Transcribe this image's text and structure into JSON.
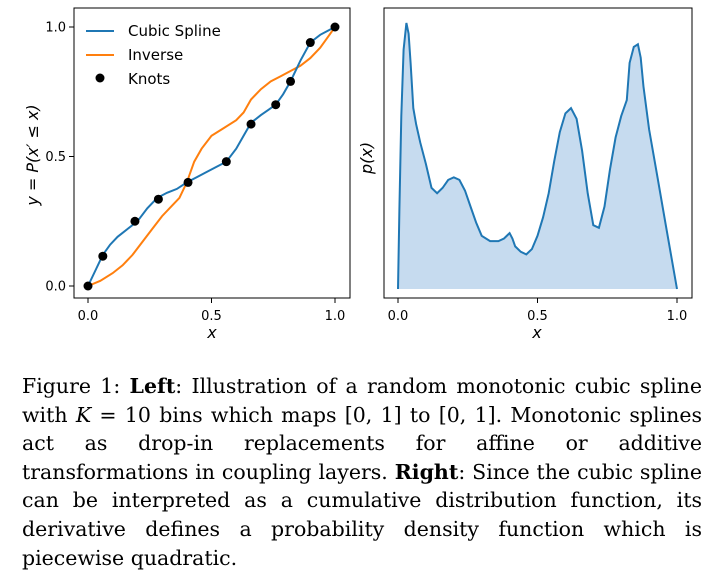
{
  "chart_data": [
    {
      "type": "line",
      "xlabel": "x",
      "ylabel": "y = P(x′ ≤ x)",
      "xlim": [
        0,
        1
      ],
      "ylim": [
        0,
        1
      ],
      "xticks": [
        "0.0",
        "0.5",
        "1.0"
      ],
      "yticks": [
        "0.0",
        "0.5",
        "1.0"
      ],
      "legend_position": "top-left",
      "colors": {
        "spline": "#1f77b4",
        "inverse": "#ff7f0e",
        "knots": "#000000"
      },
      "series": [
        {
          "name": "Cubic Spline",
          "x": [
            0,
            0.03,
            0.06,
            0.09,
            0.12,
            0.16,
            0.2,
            0.24,
            0.28,
            0.32,
            0.36,
            0.4,
            0.44,
            0.48,
            0.52,
            0.56,
            0.6,
            0.63,
            0.66,
            0.7,
            0.73,
            0.76,
            0.79,
            0.82,
            0.86,
            0.9,
            0.94,
            0.97,
            1.0
          ],
          "y": [
            0,
            0.06,
            0.12,
            0.16,
            0.19,
            0.22,
            0.25,
            0.3,
            0.34,
            0.36,
            0.375,
            0.4,
            0.42,
            0.44,
            0.46,
            0.48,
            0.53,
            0.58,
            0.63,
            0.66,
            0.68,
            0.7,
            0.74,
            0.79,
            0.87,
            0.94,
            0.97,
            0.985,
            1.0
          ]
        },
        {
          "name": "Inverse",
          "x": [
            0,
            0.05,
            0.1,
            0.14,
            0.18,
            0.22,
            0.26,
            0.3,
            0.34,
            0.37,
            0.4,
            0.43,
            0.46,
            0.5,
            0.55,
            0.6,
            0.63,
            0.66,
            0.7,
            0.74,
            0.78,
            0.82,
            0.86,
            0.9,
            0.94,
            0.97,
            1.0
          ],
          "y": [
            0,
            0.02,
            0.05,
            0.08,
            0.12,
            0.17,
            0.22,
            0.27,
            0.31,
            0.34,
            0.4,
            0.48,
            0.53,
            0.58,
            0.61,
            0.64,
            0.67,
            0.72,
            0.76,
            0.79,
            0.81,
            0.83,
            0.85,
            0.88,
            0.92,
            0.96,
            1.0
          ]
        },
        {
          "name": "Knots",
          "x": [
            0.0,
            0.06,
            0.19,
            0.285,
            0.405,
            0.56,
            0.66,
            0.76,
            0.82,
            0.9,
            1.0
          ],
          "y": [
            0.0,
            0.115,
            0.25,
            0.335,
            0.4,
            0.48,
            0.625,
            0.7,
            0.79,
            0.94,
            1.0
          ]
        }
      ]
    },
    {
      "type": "area",
      "xlabel": "x",
      "ylabel": "p(x)",
      "xlim": [
        0,
        1
      ],
      "xticks": [
        "0.0",
        "0.5",
        "1.0"
      ],
      "yticks": [],
      "colors": {
        "line": "#1f77b4",
        "fill": "#c6dbef"
      },
      "series": [
        {
          "x": [
            0,
            0.005,
            0.012,
            0.02,
            0.03,
            0.038,
            0.045,
            0.055,
            0.065,
            0.08,
            0.1,
            0.12,
            0.14,
            0.16,
            0.18,
            0.2,
            0.22,
            0.24,
            0.26,
            0.28,
            0.3,
            0.33,
            0.36,
            0.38,
            0.4,
            0.41,
            0.42,
            0.44,
            0.46,
            0.48,
            0.5,
            0.52,
            0.54,
            0.56,
            0.58,
            0.6,
            0.62,
            0.64,
            0.66,
            0.68,
            0.7,
            0.72,
            0.74,
            0.76,
            0.78,
            0.8,
            0.82,
            0.83,
            0.845,
            0.86,
            0.87,
            0.88,
            0.9,
            0.93,
            0.96,
            1.0
          ],
          "y": [
            0.0,
            0.3,
            0.65,
            0.9,
            1.0,
            0.96,
            0.85,
            0.68,
            0.62,
            0.55,
            0.47,
            0.38,
            0.36,
            0.38,
            0.41,
            0.42,
            0.41,
            0.37,
            0.31,
            0.25,
            0.2,
            0.18,
            0.18,
            0.19,
            0.21,
            0.19,
            0.16,
            0.14,
            0.13,
            0.15,
            0.2,
            0.27,
            0.36,
            0.48,
            0.59,
            0.66,
            0.68,
            0.64,
            0.52,
            0.36,
            0.24,
            0.23,
            0.31,
            0.45,
            0.57,
            0.65,
            0.71,
            0.85,
            0.91,
            0.92,
            0.87,
            0.76,
            0.6,
            0.42,
            0.24,
            0.0
          ]
        }
      ]
    }
  ],
  "caption": {
    "label": "Figure 1:",
    "left_word": "Left",
    "part1": ": Illustration of a random monotonic cubic spline with ",
    "K": "K",
    "part2": " = 10 bins which maps [0, 1] to [0, 1]. Monotonic splines act as drop-in replacements for affine or additive transformations in coupling layers. ",
    "right_word": "Right",
    "part3": ": Since the cubic spline can be interpreted as a cumulative distribution function, its derivative defines a probability density function which is piecewise quadratic."
  }
}
